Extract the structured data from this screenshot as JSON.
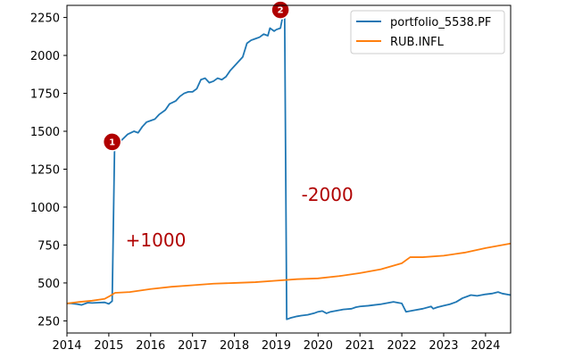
{
  "chart_data": {
    "type": "line",
    "title": "",
    "xlabel": "",
    "ylabel": "",
    "xlim": [
      2014.0,
      2024.6
    ],
    "ylim": [
      170,
      2330
    ],
    "grid": false,
    "legend_position": "top-right",
    "x_ticks": [
      "2014",
      "2015",
      "2016",
      "2017",
      "2018",
      "2019",
      "2020",
      "2021",
      "2022",
      "2023",
      "2024"
    ],
    "y_ticks": [
      "250",
      "500",
      "750",
      "1000",
      "1250",
      "1500",
      "1750",
      "2000",
      "2250"
    ],
    "series": [
      {
        "name": "portfolio_5538.PF",
        "color": "#1f77b4",
        "points": [
          [
            2014.0,
            365
          ],
          [
            2014.1,
            365
          ],
          [
            2014.25,
            360
          ],
          [
            2014.35,
            355
          ],
          [
            2014.5,
            370
          ],
          [
            2014.6,
            368
          ],
          [
            2014.75,
            370
          ],
          [
            2014.9,
            372
          ],
          [
            2015.0,
            362
          ],
          [
            2015.08,
            380
          ],
          [
            2015.14,
            1430
          ],
          [
            2015.2,
            1440
          ],
          [
            2015.3,
            1440
          ],
          [
            2015.45,
            1480
          ],
          [
            2015.6,
            1500
          ],
          [
            2015.7,
            1490
          ],
          [
            2015.8,
            1530
          ],
          [
            2015.9,
            1560
          ],
          [
            2016.0,
            1570
          ],
          [
            2016.1,
            1580
          ],
          [
            2016.2,
            1610
          ],
          [
            2016.35,
            1640
          ],
          [
            2016.45,
            1680
          ],
          [
            2016.6,
            1700
          ],
          [
            2016.7,
            1730
          ],
          [
            2016.8,
            1750
          ],
          [
            2016.9,
            1760
          ],
          [
            2017.0,
            1760
          ],
          [
            2017.1,
            1780
          ],
          [
            2017.2,
            1840
          ],
          [
            2017.3,
            1850
          ],
          [
            2017.4,
            1820
          ],
          [
            2017.5,
            1830
          ],
          [
            2017.6,
            1850
          ],
          [
            2017.7,
            1840
          ],
          [
            2017.8,
            1860
          ],
          [
            2017.9,
            1900
          ],
          [
            2018.0,
            1930
          ],
          [
            2018.1,
            1960
          ],
          [
            2018.2,
            1990
          ],
          [
            2018.3,
            2080
          ],
          [
            2018.4,
            2100
          ],
          [
            2018.5,
            2110
          ],
          [
            2018.6,
            2120
          ],
          [
            2018.7,
            2140
          ],
          [
            2018.8,
            2130
          ],
          [
            2018.85,
            2180
          ],
          [
            2018.95,
            2160
          ],
          [
            2019.0,
            2170
          ],
          [
            2019.1,
            2180
          ],
          [
            2019.15,
            2250
          ],
          [
            2019.2,
            2300
          ],
          [
            2019.25,
            260
          ],
          [
            2019.35,
            270
          ],
          [
            2019.5,
            280
          ],
          [
            2019.6,
            285
          ],
          [
            2019.75,
            290
          ],
          [
            2019.9,
            300
          ],
          [
            2020.0,
            310
          ],
          [
            2020.1,
            315
          ],
          [
            2020.2,
            300
          ],
          [
            2020.3,
            310
          ],
          [
            2020.5,
            320
          ],
          [
            2020.6,
            325
          ],
          [
            2020.8,
            330
          ],
          [
            2020.9,
            340
          ],
          [
            2021.0,
            345
          ],
          [
            2021.2,
            350
          ],
          [
            2021.35,
            355
          ],
          [
            2021.5,
            360
          ],
          [
            2021.7,
            370
          ],
          [
            2021.8,
            375
          ],
          [
            2022.0,
            365
          ],
          [
            2022.1,
            310
          ],
          [
            2022.2,
            315
          ],
          [
            2022.3,
            320
          ],
          [
            2022.5,
            330
          ],
          [
            2022.7,
            345
          ],
          [
            2022.75,
            330
          ],
          [
            2022.85,
            340
          ],
          [
            2023.0,
            350
          ],
          [
            2023.15,
            360
          ],
          [
            2023.3,
            375
          ],
          [
            2023.45,
            400
          ],
          [
            2023.55,
            410
          ],
          [
            2023.65,
            420
          ],
          [
            2023.8,
            415
          ],
          [
            2023.9,
            420
          ],
          [
            2024.0,
            425
          ],
          [
            2024.15,
            430
          ],
          [
            2024.3,
            440
          ],
          [
            2024.4,
            430
          ],
          [
            2024.6,
            420
          ]
        ]
      },
      {
        "name": "RUB.INFL",
        "color": "#ff7f0e",
        "points": [
          [
            2014.0,
            365
          ],
          [
            2014.3,
            375
          ],
          [
            2014.6,
            383
          ],
          [
            2014.9,
            395
          ],
          [
            2015.0,
            410
          ],
          [
            2015.15,
            435
          ],
          [
            2015.5,
            440
          ],
          [
            2016.0,
            460
          ],
          [
            2016.5,
            475
          ],
          [
            2017.0,
            485
          ],
          [
            2017.5,
            495
          ],
          [
            2018.0,
            500
          ],
          [
            2018.5,
            505
          ],
          [
            2019.0,
            515
          ],
          [
            2019.5,
            525
          ],
          [
            2020.0,
            530
          ],
          [
            2020.5,
            545
          ],
          [
            2021.0,
            565
          ],
          [
            2021.5,
            590
          ],
          [
            2022.0,
            630
          ],
          [
            2022.2,
            670
          ],
          [
            2022.5,
            670
          ],
          [
            2023.0,
            680
          ],
          [
            2023.5,
            700
          ],
          [
            2024.0,
            730
          ],
          [
            2024.6,
            760
          ]
        ]
      }
    ],
    "annotations": [
      {
        "label": "1",
        "x": 2015.08,
        "y": 1430,
        "kind": "marker",
        "color": "#b00000"
      },
      {
        "label": "2",
        "x": 2019.1,
        "y": 2300,
        "kind": "marker",
        "color": "#b00000"
      },
      {
        "label": "+1000",
        "x": 2015.4,
        "y": 740,
        "kind": "text",
        "color": "#b00000"
      },
      {
        "label": "-2000",
        "x": 2019.6,
        "y": 1040,
        "kind": "text",
        "color": "#b00000"
      }
    ]
  }
}
